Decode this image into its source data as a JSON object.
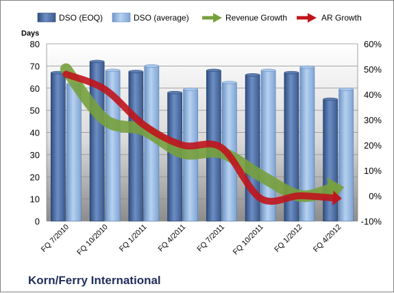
{
  "chart_data": {
    "type": "bar",
    "title": "Korn/Ferry International",
    "ylabel": "Days",
    "ylim": [
      0,
      80
    ],
    "yticks": [
      "0",
      "10",
      "20",
      "30",
      "40",
      "50",
      "60",
      "70",
      "80"
    ],
    "y2lim": [
      -10,
      60
    ],
    "y2ticks": [
      "-10%",
      "0%",
      "10%",
      "20%",
      "30%",
      "40%",
      "50%",
      "60%"
    ],
    "categories": [
      "FQ 7/2010",
      "FQ 10/2010",
      "FQ 1/2011",
      "FQ 4/2011",
      "FQ 7/2011",
      "FQ 10/2011",
      "FQ 1/2012",
      "FQ 4/2012"
    ],
    "series": [
      {
        "name": "DSO (EOQ)",
        "kind": "bar",
        "axis": "left",
        "color": "#4f6fa5",
        "values": [
          67,
          72,
          67.5,
          58,
          68,
          66,
          67,
          55
        ]
      },
      {
        "name": "DSO (average)",
        "kind": "bar",
        "axis": "left",
        "color": "#8fb4e3",
        "values": [
          62,
          68,
          70,
          59.5,
          62.5,
          68,
          69.5,
          59.5
        ]
      },
      {
        "name": "Revenue Growth",
        "kind": "arrow",
        "axis": "right",
        "color": "#77a03d",
        "values": [
          50,
          30,
          26,
          17,
          17,
          8,
          0,
          3
        ]
      },
      {
        "name": "AR Growth",
        "kind": "arrow",
        "axis": "right",
        "color": "#c0141c",
        "values": [
          48,
          42,
          28,
          20,
          19,
          -1,
          0,
          -1
        ]
      }
    ],
    "grid": true,
    "legend": "top"
  }
}
